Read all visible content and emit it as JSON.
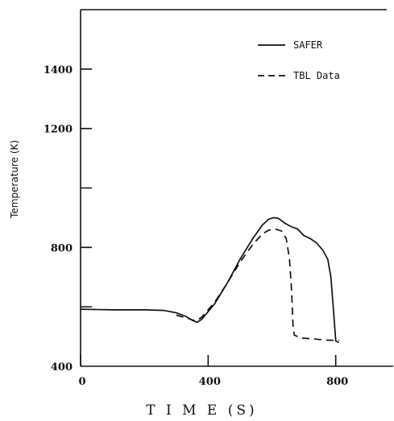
{
  "chart_data": {
    "type": "line",
    "title": "",
    "xlabel": "T I M E  (S)",
    "ylabel": "Temperature (K)",
    "xlim": [
      0,
      960
    ],
    "ylim": [
      400,
      1600
    ],
    "x_ticks": [
      0,
      400,
      800
    ],
    "y_ticks": [
      400,
      800,
      1200,
      1400
    ],
    "grid": false,
    "legend_position": "top-right",
    "series": [
      {
        "name": "SAFER",
        "line_style": "solid",
        "color": "#111111",
        "x": [
          0,
          100,
          200,
          260,
          300,
          330,
          350,
          365,
          380,
          420,
          460,
          500,
          540,
          570,
          590,
          605,
          620,
          640,
          660,
          680,
          700,
          720,
          740,
          760,
          775,
          785,
          795,
          800,
          810
        ],
        "y": [
          592,
          590,
          590,
          588,
          580,
          568,
          555,
          548,
          558,
          610,
          680,
          760,
          830,
          875,
          895,
          900,
          898,
          882,
          870,
          862,
          840,
          830,
          815,
          790,
          760,
          700,
          560,
          485,
          480
        ]
      },
      {
        "name": "TBL Data",
        "line_style": "dashed",
        "color": "#111111",
        "x": [
          300,
          340,
          360,
          380,
          420,
          460,
          500,
          540,
          570,
          590,
          610,
          630,
          645,
          655,
          662,
          666,
          670,
          690,
          730,
          770,
          810
        ],
        "y": [
          572,
          560,
          552,
          565,
          615,
          680,
          750,
          810,
          845,
          858,
          862,
          855,
          830,
          760,
          650,
          540,
          505,
          495,
          492,
          488,
          487
        ]
      }
    ]
  }
}
